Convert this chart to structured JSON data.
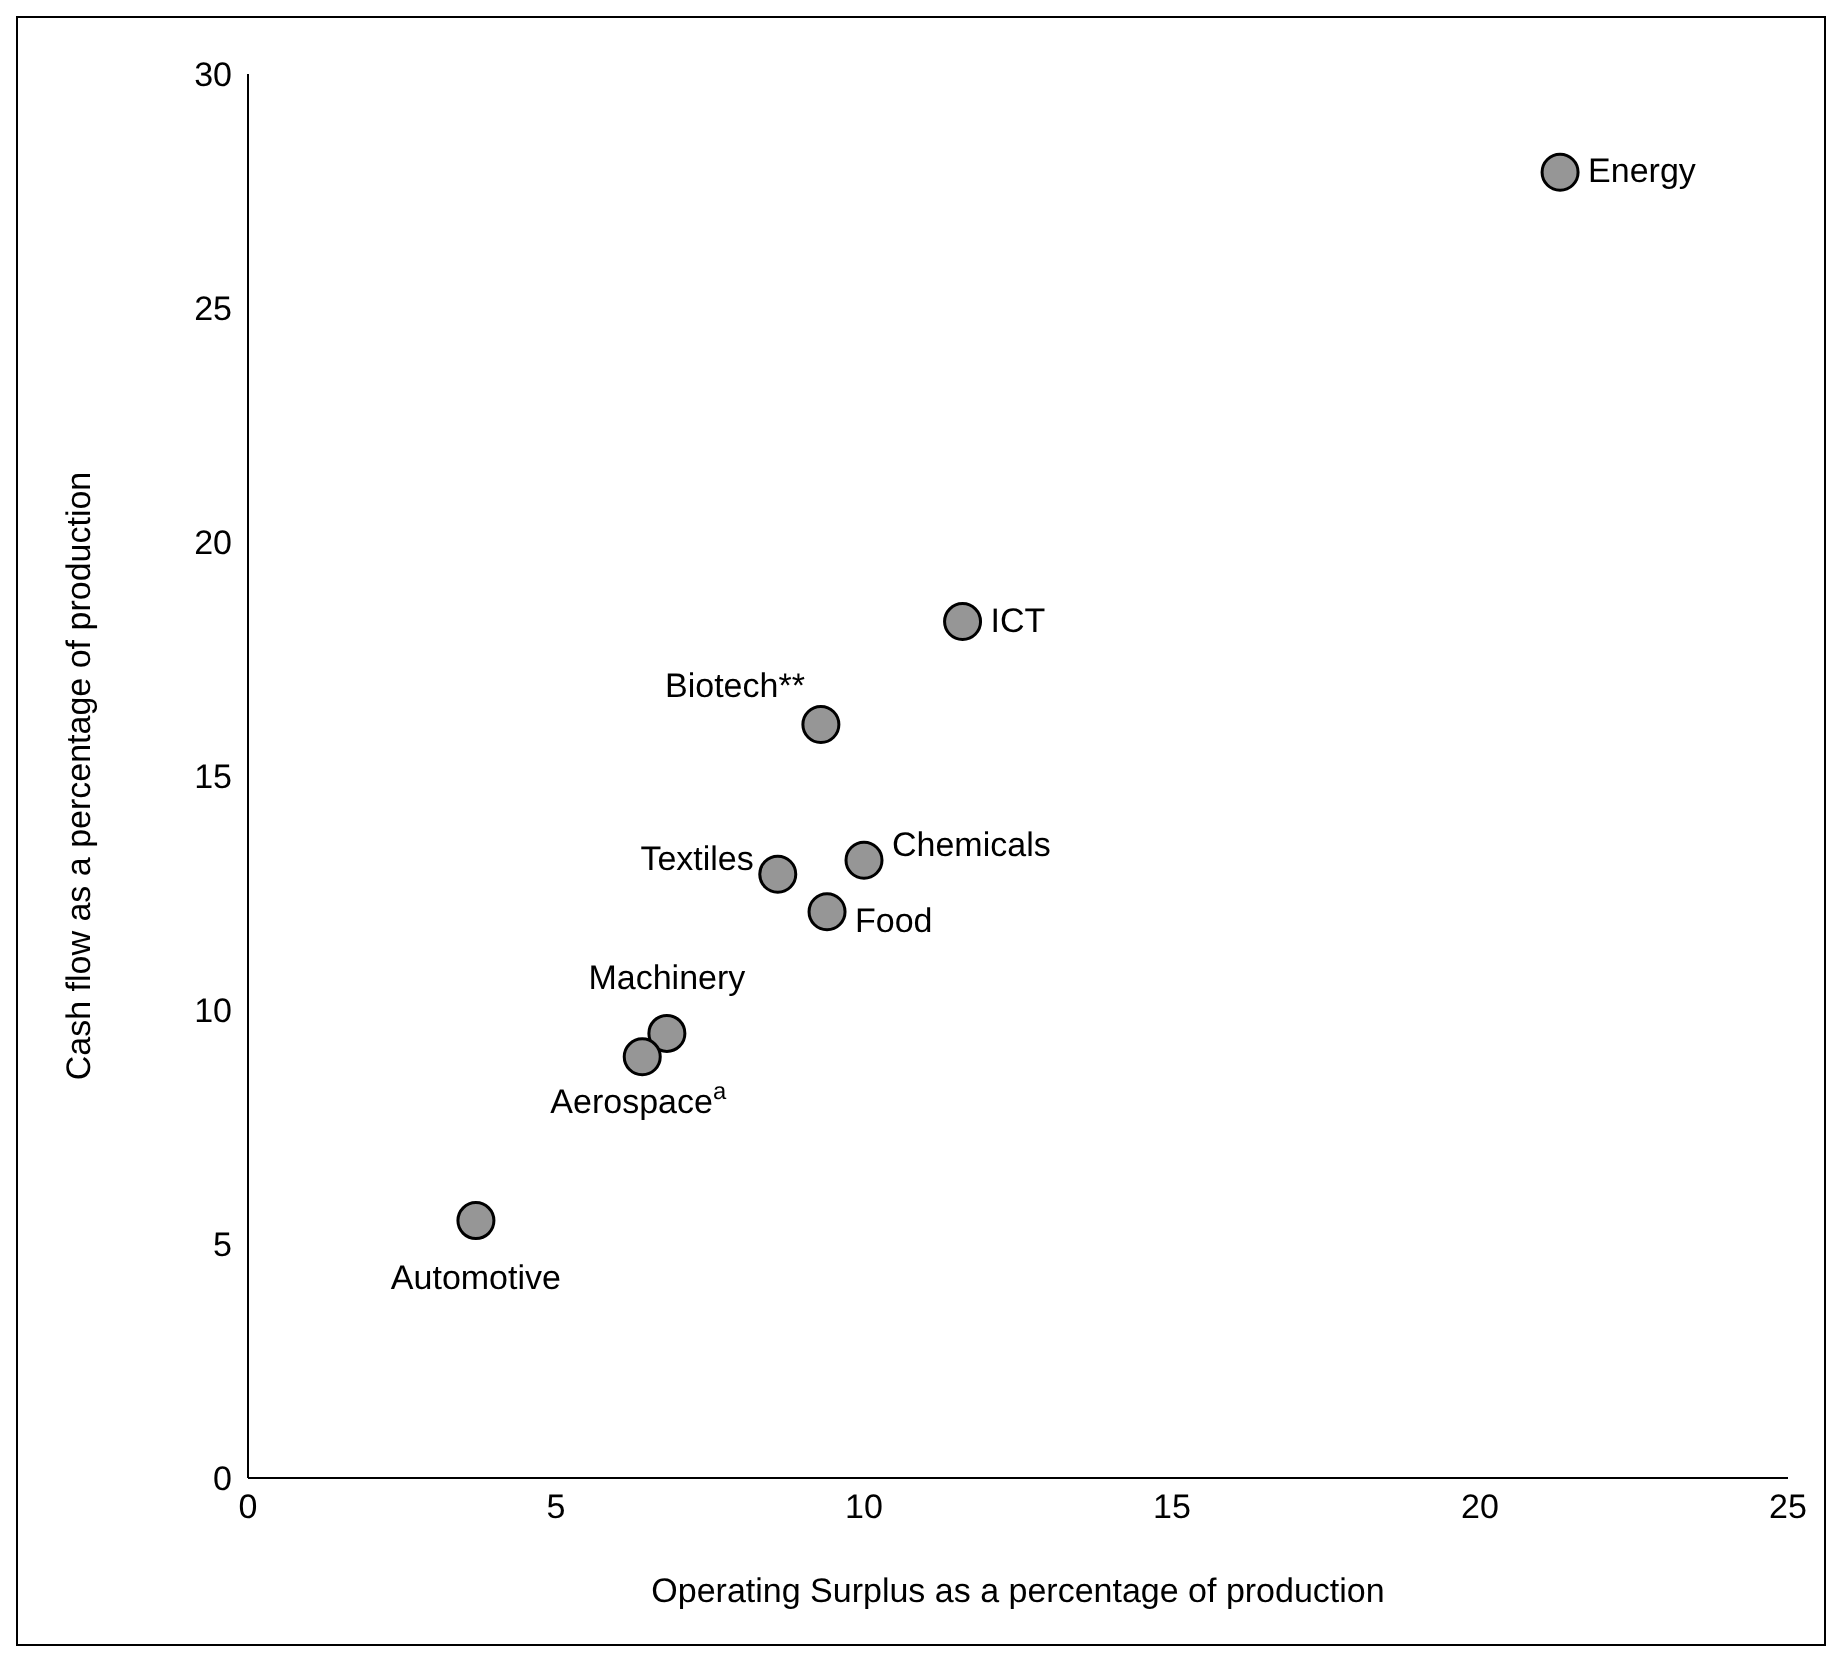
{
  "chart_data": {
    "type": "scatter",
    "xlabel": "Operating Surplus as a percentage of production",
    "ylabel": "Cash flow as a percentage of production",
    "x": [
      21.3,
      11.6,
      9.3,
      8.6,
      10.0,
      9.4,
      6.8,
      6.4,
      3.7
    ],
    "series": [
      {
        "color": "#969696",
        "values": [
          27.9,
          18.3,
          16.1,
          12.9,
          13.2,
          12.1,
          9.5,
          9.0,
          5.5
        ],
        "value_labels": [
          "Energy",
          "ICT",
          "Biotech**",
          "Textiles",
          "Chemicals",
          "Food",
          "Machinery",
          "Aerospace$^{a}$",
          "Automotive"
        ]
      }
    ],
    "xlim": [
      0,
      25
    ],
    "xticks": [
      0,
      5,
      10,
      15,
      20,
      25
    ],
    "ylim": [
      0,
      30
    ],
    "yticks": [
      0,
      5,
      10,
      15,
      20,
      25,
      30
    ],
    "grid": false,
    "marker": "circle"
  }
}
